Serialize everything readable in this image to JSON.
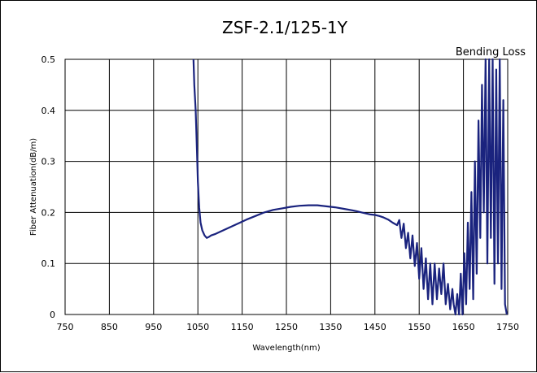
{
  "chart_data": {
    "type": "line",
    "title": "ZSF-2.1/125-1Y",
    "xlabel": "Wavelength(nm)",
    "ylabel": "Fiber Attenuation(dB/m)",
    "annotation": "Bending Loss",
    "xlim": [
      750,
      1750
    ],
    "ylim": [
      0,
      0.5
    ],
    "x_ticks": [
      "750",
      "850",
      "950",
      "1050",
      "1150",
      "1250",
      "1350",
      "1450",
      "1550",
      "1650",
      "1750"
    ],
    "y_ticks": [
      "0",
      "0.1",
      "0.2",
      "0.3",
      "0.4",
      "0.5"
    ],
    "grid": true,
    "series": [
      {
        "color": "#1a237e",
        "x": [
          1040,
          1042,
          1045,
          1048,
          1050,
          1053,
          1056,
          1060,
          1065,
          1070,
          1075,
          1080,
          1090,
          1100,
          1120,
          1140,
          1160,
          1180,
          1200,
          1220,
          1240,
          1260,
          1280,
          1300,
          1320,
          1340,
          1360,
          1380,
          1400,
          1410,
          1420,
          1430,
          1440,
          1450,
          1460,
          1470,
          1480,
          1490,
          1500,
          1505,
          1510,
          1515,
          1520,
          1525,
          1530,
          1535,
          1540,
          1545,
          1550,
          1555,
          1560,
          1565,
          1570,
          1575,
          1580,
          1585,
          1590,
          1595,
          1600,
          1605,
          1610,
          1615,
          1620,
          1625,
          1628,
          1632,
          1636,
          1640,
          1644,
          1648,
          1652,
          1656,
          1660,
          1664,
          1668,
          1672,
          1676,
          1680,
          1684,
          1688,
          1692,
          1696,
          1700,
          1704,
          1708,
          1712,
          1716,
          1720,
          1724,
          1728,
          1732,
          1736,
          1740,
          1744,
          1748
        ],
        "y": [
          0.5,
          0.45,
          0.4,
          0.32,
          0.26,
          0.21,
          0.18,
          0.165,
          0.155,
          0.15,
          0.152,
          0.155,
          0.158,
          0.162,
          0.17,
          0.178,
          0.186,
          0.193,
          0.2,
          0.205,
          0.208,
          0.211,
          0.213,
          0.214,
          0.214,
          0.212,
          0.21,
          0.207,
          0.204,
          0.202,
          0.2,
          0.198,
          0.196,
          0.195,
          0.193,
          0.19,
          0.186,
          0.18,
          0.175,
          0.185,
          0.15,
          0.178,
          0.13,
          0.16,
          0.11,
          0.155,
          0.095,
          0.14,
          0.07,
          0.13,
          0.05,
          0.11,
          0.03,
          0.1,
          0.02,
          0.1,
          0.03,
          0.09,
          0.04,
          0.1,
          0.02,
          0.06,
          0.01,
          0.05,
          0.02,
          0.0,
          0.04,
          0.0,
          0.08,
          0.0,
          0.12,
          0.02,
          0.18,
          0.05,
          0.24,
          0.03,
          0.3,
          0.08,
          0.38,
          0.15,
          0.45,
          0.2,
          0.5,
          0.1,
          0.5,
          0.15,
          0.5,
          0.06,
          0.48,
          0.1,
          0.5,
          0.05,
          0.42,
          0.02,
          0.0
        ]
      }
    ]
  }
}
